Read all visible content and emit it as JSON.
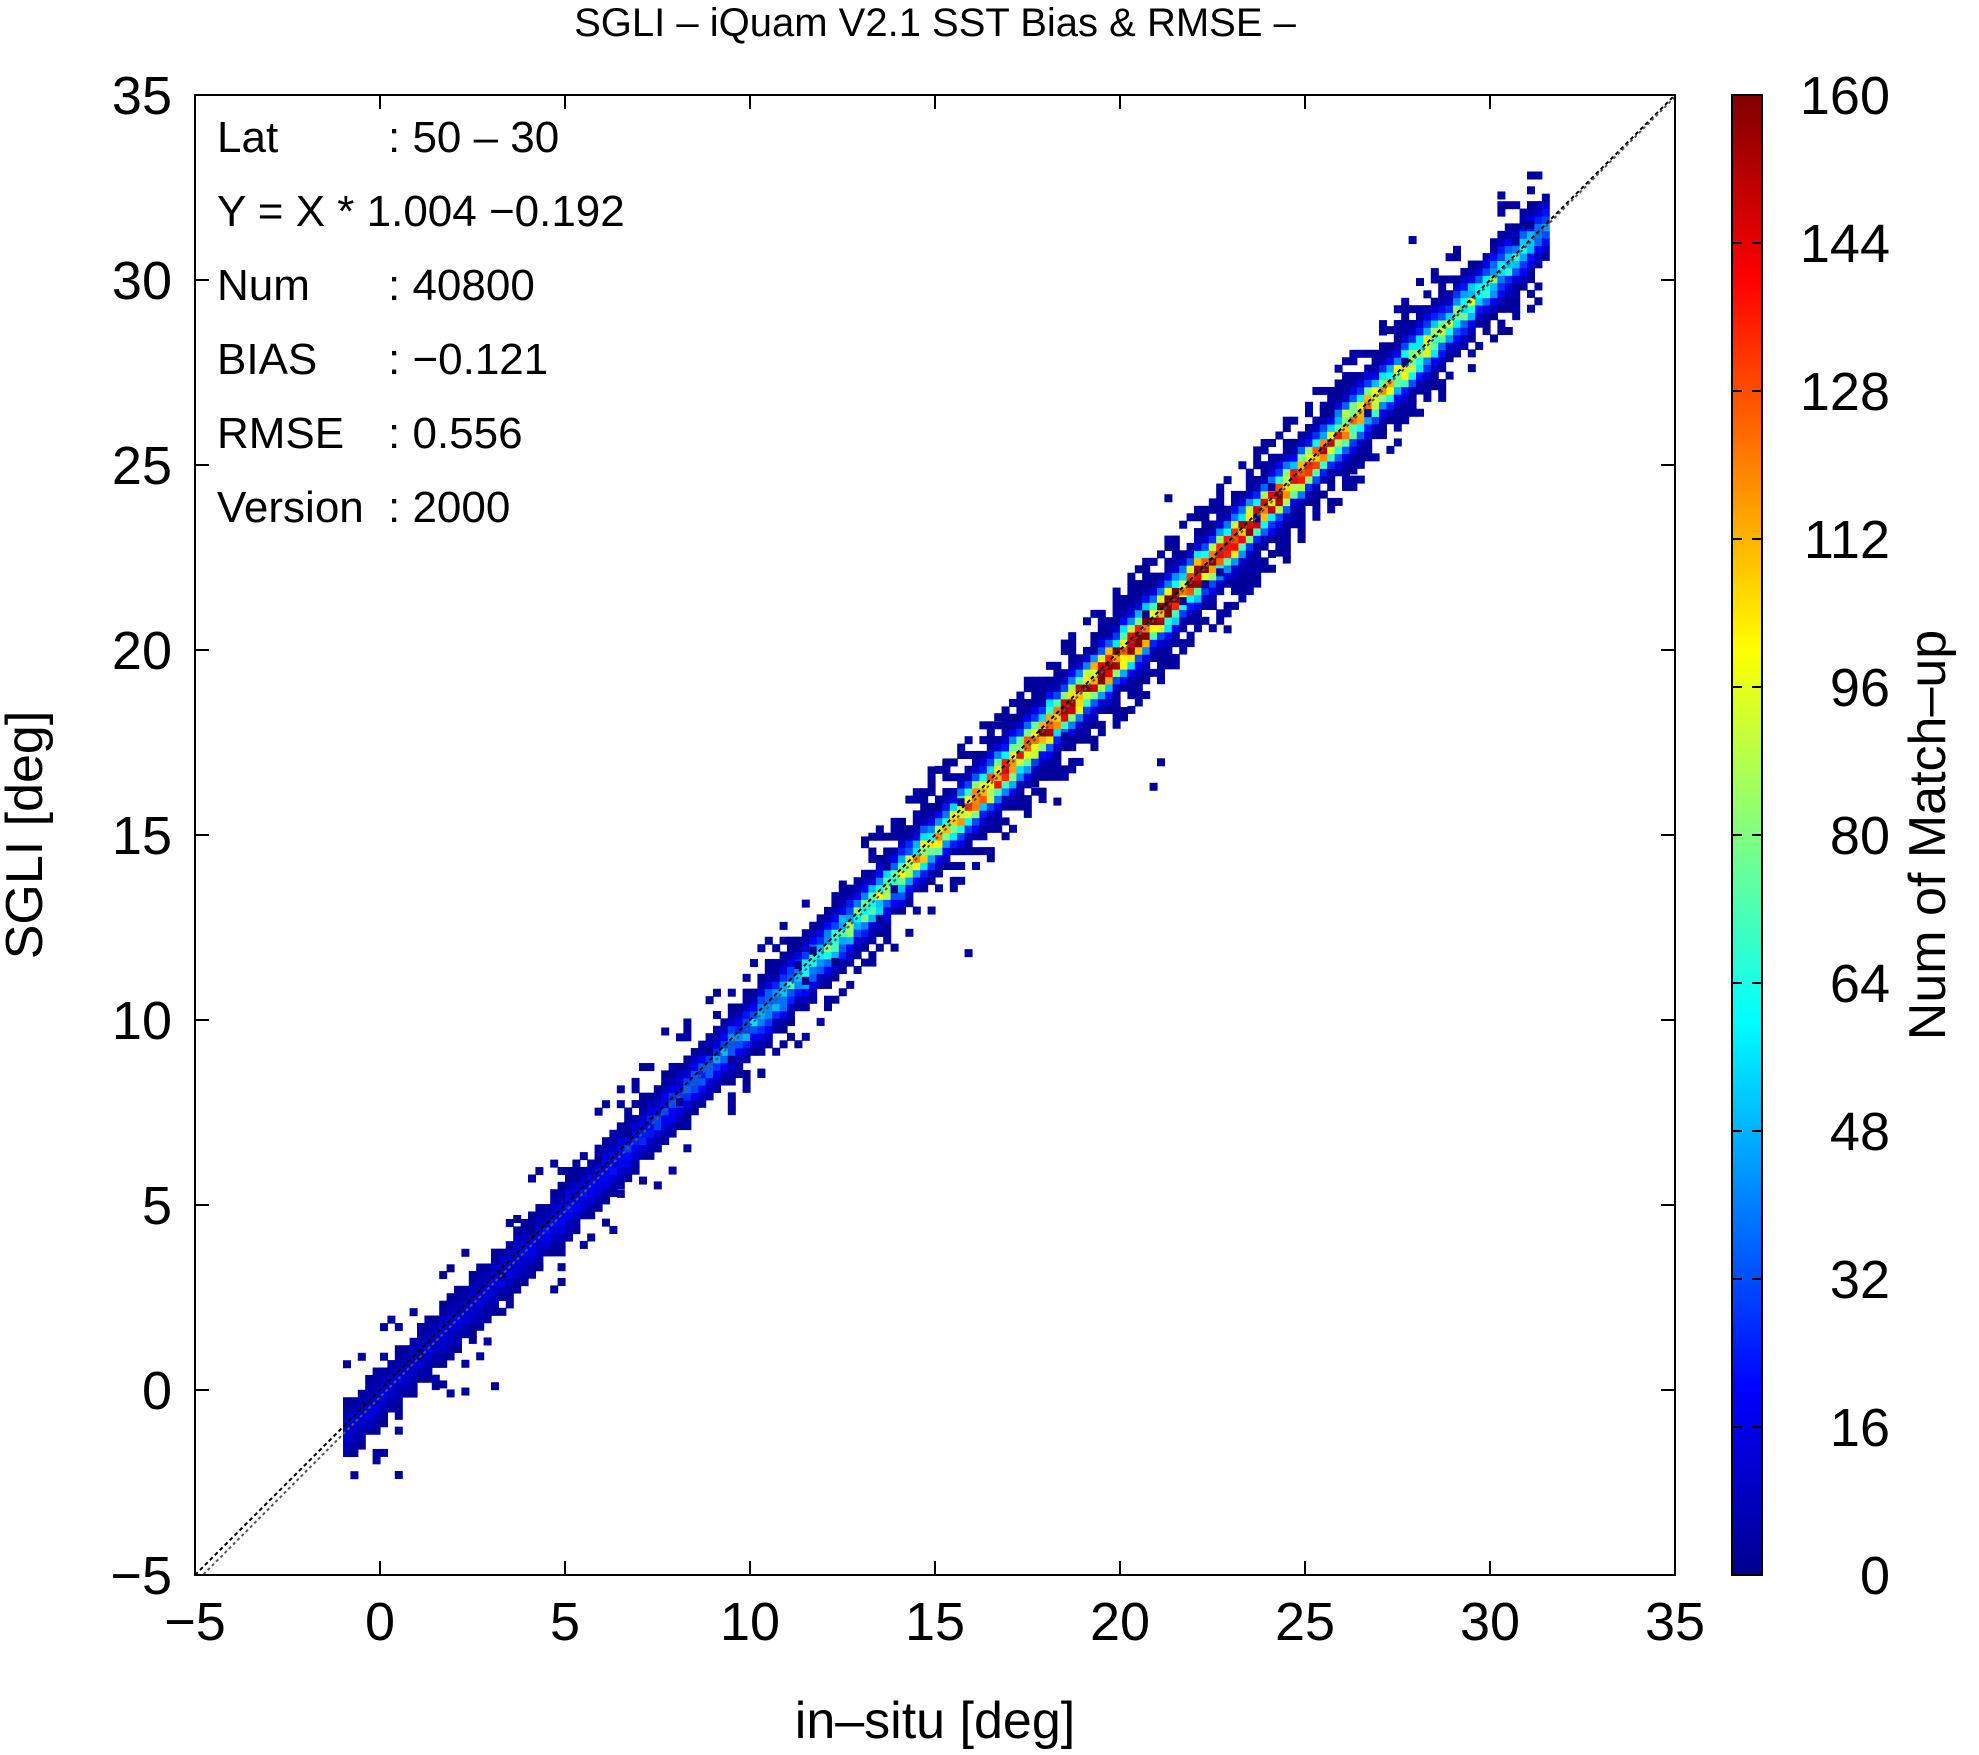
{
  "chart_data": {
    "type": "heatmap",
    "title": "SGLI – iQuam V2.1 SST Bias & RMSE  –",
    "xlabel": "in–situ [deg]",
    "ylabel": "SGLI [deg]",
    "xlim": [
      -5,
      35
    ],
    "ylim": [
      -5,
      35
    ],
    "xticks": [
      -5,
      0,
      5,
      10,
      15,
      20,
      25,
      30,
      35
    ],
    "yticks": [
      -5,
      0,
      5,
      10,
      15,
      20,
      25,
      30,
      35
    ],
    "xtick_labels": [
      "−5",
      "0",
      "5",
      "10",
      "15",
      "20",
      "25",
      "30",
      "35"
    ],
    "ytick_labels": [
      "−5",
      "0",
      "5",
      "10",
      "15",
      "20",
      "25",
      "30",
      "35"
    ],
    "colorbar": {
      "label": "Num of Match–up",
      "range": [
        0,
        160
      ],
      "ticks": [
        0,
        16,
        32,
        48,
        64,
        80,
        96,
        112,
        128,
        144,
        160
      ],
      "tick_labels": [
        "0",
        "16",
        "32",
        "48",
        "64",
        "80",
        "96",
        "112",
        "128",
        "144",
        "160"
      ],
      "colormap": [
        "#00008f",
        "#0000ff",
        "#0080ff",
        "#00ffff",
        "#80ff80",
        "#ffff00",
        "#ff8000",
        "#ff0000",
        "#800000"
      ]
    },
    "stats": [
      {
        "key": "Lat",
        "value": ": 50 – 30"
      },
      {
        "key": "Y = X * 1.004 −0.192",
        "value": ""
      },
      {
        "key": "Num",
        "value": ": 40800"
      },
      {
        "key": "BIAS",
        "value": ": −0.121"
      },
      {
        "key": "RMSE",
        "value": ": 0.556"
      },
      {
        "key": "Version",
        "value": ": 2000"
      }
    ],
    "regression": {
      "slope": 1.004,
      "intercept": -0.192
    },
    "reference_line": "y = x",
    "data_range": [
      -1.0,
      31.5
    ],
    "bin_size": 0.2,
    "peak_count": 155,
    "grid": false
  }
}
